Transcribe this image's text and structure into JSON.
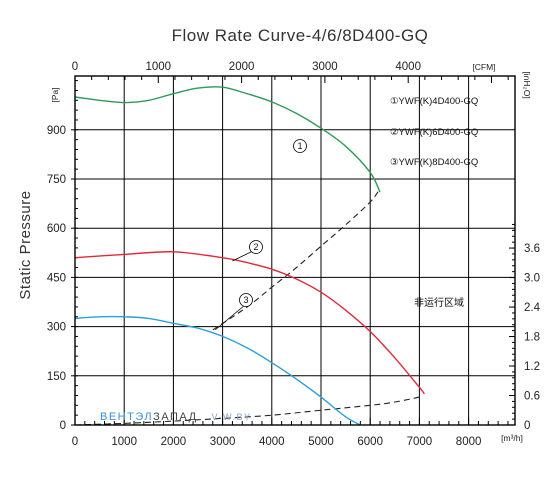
{
  "chart_data": {
    "type": "line",
    "title": "Flow Rate Curve-4/6/8D400-GQ",
    "ylabel": "Static Pressure",
    "y_unit": "[Pa]",
    "y2_unit": "[inH₂O]",
    "x_unit": "[m³/h]",
    "x2_unit": "[CFM]",
    "xlim": [
      0,
      9000
    ],
    "ylim": [
      0,
      1050
    ],
    "x_ticks": [
      "0",
      "1000",
      "2000",
      "3000",
      "4000",
      "5000",
      "6000",
      "7000",
      "8000"
    ],
    "x2_ticks": [
      "0",
      "1000",
      "2000",
      "3000",
      "4000"
    ],
    "y_ticks": [
      "0",
      "150",
      "300",
      "450",
      "600",
      "750",
      "900"
    ],
    "y2_ticks": [
      "0",
      "0.6",
      "1.2",
      "1.8",
      "2.4",
      "3.0",
      "3.6"
    ],
    "grid": true,
    "legend_position": "top-right",
    "series": [
      {
        "name": "①YWF(K)4D400-GQ",
        "marker": "1",
        "color": "#2e9a58",
        "x": [
          0,
          500,
          1000,
          1500,
          2000,
          2500,
          3000,
          3500,
          4000,
          4500,
          5000,
          5500,
          6000,
          6200
        ],
        "y": [
          1000,
          990,
          983,
          990,
          1010,
          1027,
          1030,
          1010,
          985,
          950,
          905,
          850,
          770,
          710
        ]
      },
      {
        "name": "②YWF(K)6D400-GQ",
        "marker": "2",
        "color": "#e02a3a",
        "x": [
          0,
          1000,
          2000,
          3000,
          3500,
          4000,
          4500,
          5000,
          5500,
          6000,
          6500,
          7000,
          7100
        ],
        "y": [
          510,
          520,
          528,
          510,
          495,
          475,
          445,
          405,
          350,
          285,
          205,
          115,
          95
        ]
      },
      {
        "name": "③YWF(K)8D400-GQ",
        "marker": "3",
        "color": "#2aa0d8",
        "x": [
          0,
          500,
          1000,
          1500,
          2000,
          2500,
          3000,
          3500,
          4000,
          4500,
          5000,
          5500,
          5800
        ],
        "y": [
          325,
          330,
          330,
          325,
          310,
          295,
          270,
          235,
          190,
          140,
          85,
          25,
          0
        ]
      }
    ],
    "system_curve": {
      "style": "dashed",
      "x": [
        0,
        1000,
        2000,
        3000,
        4000,
        5000,
        6000,
        6500,
        7000
      ],
      "y": [
        0,
        5,
        12,
        20,
        30,
        45,
        60,
        70,
        85
      ]
    },
    "system_curve_upper": {
      "style": "dashed",
      "x": [
        2800,
        3500,
        4000,
        4500,
        5000,
        5500,
        6000,
        6200
      ],
      "y": [
        290,
        360,
        420,
        480,
        545,
        610,
        680,
        720
      ]
    },
    "annotations": {
      "non_operating_region": "非运行区域"
    }
  },
  "watermark": {
    "part1": "ВЕНТЭЛ",
    "part2": "ЗАПАД",
    "part3": "V-W.BY"
  }
}
